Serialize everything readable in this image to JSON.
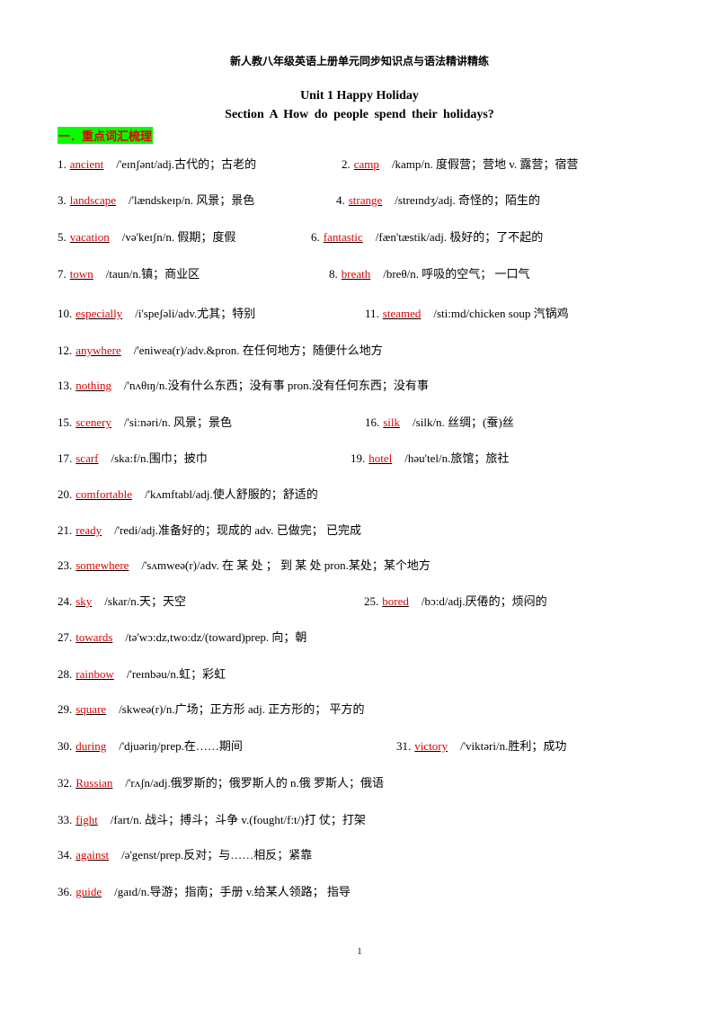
{
  "header": {
    "title": "新人教八年级英语上册单元同步知识点与语法精讲精练",
    "unit": "Unit 1 Happy Holiday",
    "section": "Section A How  do  people  spend  their  holidays?"
  },
  "heading": "一．重点词汇梳理",
  "rows": [
    [
      {
        "num": "1.",
        "word": "ancient",
        "def": "/'eɪnʃənt/adj.古代的；古老的"
      },
      {
        "num": "2.",
        "word": "camp",
        "def": "/kamp/n. 度假营；营地 v. 露营；宿营"
      }
    ],
    [
      {
        "num": "3.",
        "word": "landscape",
        "def": "/'lændskeɪp/n. 风景；景色"
      },
      {
        "num": "4.",
        "word": "strange",
        "def": "/streɪndʒ/adj. 奇怪的；陌生的"
      }
    ],
    [
      {
        "num": "5.",
        "word": "vacation",
        "def": "/və'keɪʃn/n. 假期；度假"
      },
      {
        "num": "6.",
        "word": "fantastic",
        "def": "/fæn'tæstik/adj. 极好的；了不起的"
      }
    ],
    [
      {
        "num": "7.",
        "word": "town",
        "def": "/taun/n.镇；商业区"
      },
      {
        "num": "8.",
        "word": "breath",
        "def": "/breθ/n. 呼吸的空气；  一口气"
      }
    ],
    [
      {
        "num": "10.",
        "word": "especially",
        "def": "/i'speʃəli/adv.尤其；特别"
      },
      {
        "num": "11.",
        "word": "steamed",
        "def": "/sti:md/chicken soup 汽锅鸡"
      }
    ],
    [
      {
        "num": "12.",
        "word": "anywhere",
        "def": "/'eniwea(r)/adv.&pron. 在任何地方；随便什么地方"
      }
    ],
    [
      {
        "num": "13.",
        "word": "nothing",
        "def": "/'nʌθɪŋ/n.没有什么东西；没有事 pron.没有任何东西；没有事"
      }
    ],
    [
      {
        "num": "15.",
        "word": "scenery",
        "def": "/'si:nəri/n. 风景；景色"
      },
      {
        "num": "16.",
        "word": "silk",
        "def": "/silk/n. 丝绸；(蚕)丝"
      }
    ],
    [
      {
        "num": "17.",
        "word": "scarf",
        "def": "/ska:f/n.围巾；披巾"
      },
      {
        "num": "19.",
        "word": "hotel",
        "def": "/həu'tel/n.旅馆；旅社"
      }
    ],
    [
      {
        "num": "20.",
        "word": "comfortable",
        "def": "/'kʌmftabl/adj.使人舒服的；舒适的"
      }
    ],
    [
      {
        "num": "21.",
        "word": "ready",
        "def": "/'redi/adj.准备好的；现成的  adv. 已做完；  已完成"
      }
    ],
    [
      {
        "num": "23.",
        "word": "somewhere",
        "def": "/'sʌmweə(r)/adv. 在 某 处 ；  到 某 处 pron.某处；某个地方"
      }
    ],
    [
      {
        "num": "24.",
        "word": "sky",
        "def": "/skar/n.天；天空"
      },
      {
        "num": "25.",
        "word": "bored",
        "def": "/bɔ:d/adj.厌倦的；烦闷的"
      }
    ],
    [
      {
        "num": "27.",
        "word": "towards",
        "def": "/tə'wɔ:dz,two:dz/(toward)prep. 向；朝"
      }
    ],
    [
      {
        "num": "28.",
        "word": "rainbow",
        "def": "/'reɪnbəu/n.虹；彩虹"
      }
    ],
    [
      {
        "num": "29.",
        "word": "square",
        "def": "/skweə(r)/n.广场；正方形 adj. 正方形的；  平方的"
      }
    ],
    [
      {
        "num": "30.",
        "word": "during",
        "def": "/'djuəriŋ/prep.在……期间"
      },
      {
        "num": "31.",
        "word": "victory",
        "def": "/'viktəri/n.胜利；成功"
      }
    ],
    [
      {
        "num": "32.",
        "word": "Russian",
        "def": "/'rʌʃn/adj.俄罗斯的；俄罗斯人的 n.俄  罗斯人；俄语"
      }
    ],
    [
      {
        "num": "33.",
        "word": "fight",
        "def": "/fart/n. 战斗；搏斗；斗争  v.(fought/f:t/)打  仗；打架"
      }
    ],
    [
      {
        "num": "34.",
        "word": "against",
        "def": "/ə'genst/prep.反对；与……相反；紧靠"
      }
    ],
    [
      {
        "num": "36.",
        "word": "guide",
        "def": "/gaɪd/n.导游；指南；手册 v.给某人领路；  指导"
      }
    ]
  ],
  "page_number": "1"
}
